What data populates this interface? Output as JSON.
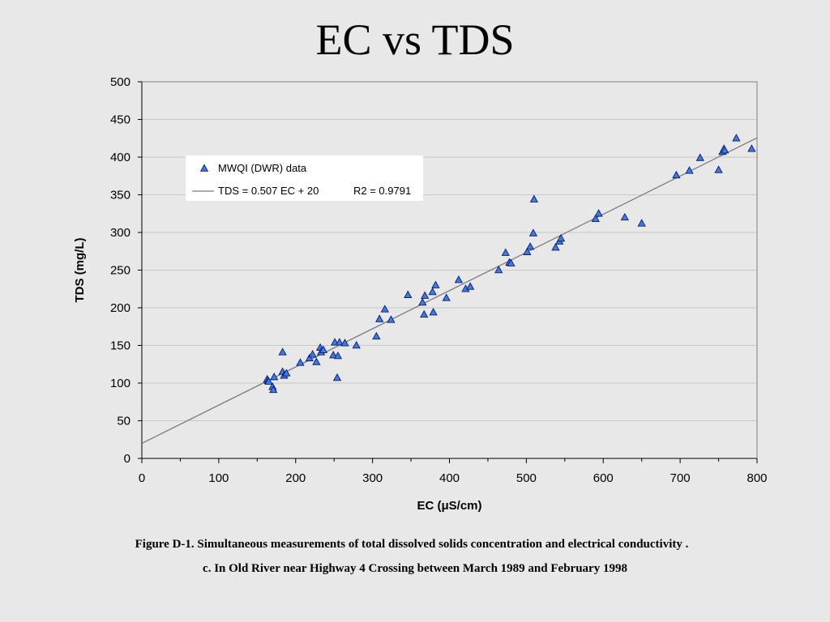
{
  "slide": {
    "title": "EC vs TDS",
    "caption_line1": "Figure D-1.  Simultaneous measurements of total dissolved solids concentration and electrical conductivity .",
    "caption_line2": "c.  In Old River near Highway 4 Crossing between March 1989 and February 1998"
  },
  "chart_data": {
    "type": "scatter",
    "title": "",
    "xlabel": "EC (μS/cm)",
    "ylabel": "TDS (mg/L)",
    "xlim": [
      0,
      800
    ],
    "ylim": [
      0,
      500
    ],
    "xticks": [
      0,
      100,
      200,
      300,
      400,
      500,
      600,
      700,
      800
    ],
    "yticks": [
      0,
      50,
      100,
      150,
      200,
      250,
      300,
      350,
      400,
      450,
      500
    ],
    "grid": "horizontal",
    "legend_position": "upper-left",
    "colors": {
      "marker_fill": "#3d7be8",
      "marker_stroke": "#0a1a6a",
      "trend_line": "#7a7a7a",
      "plot_background": "#e8e8e8",
      "gridline": "#c8c8c8"
    },
    "series": [
      {
        "name": "MWQI (DWR) data",
        "marker": "triangle",
        "points": [
          [
            163,
            105
          ],
          [
            164,
            103
          ],
          [
            165,
            102
          ],
          [
            170,
            95
          ],
          [
            171,
            91
          ],
          [
            172,
            108
          ],
          [
            183,
            141
          ],
          [
            183,
            115
          ],
          [
            185,
            110
          ],
          [
            188,
            113
          ],
          [
            206,
            127
          ],
          [
            218,
            133
          ],
          [
            222,
            138
          ],
          [
            227,
            128
          ],
          [
            232,
            147
          ],
          [
            233,
            141
          ],
          [
            236,
            144
          ],
          [
            249,
            137
          ],
          [
            251,
            154
          ],
          [
            254,
            107
          ],
          [
            255,
            136
          ],
          [
            257,
            154
          ],
          [
            264,
            153
          ],
          [
            279,
            150
          ],
          [
            305,
            162
          ],
          [
            309,
            185
          ],
          [
            316,
            198
          ],
          [
            324,
            184
          ],
          [
            346,
            217
          ],
          [
            365,
            207
          ],
          [
            367,
            191
          ],
          [
            368,
            216
          ],
          [
            378,
            221
          ],
          [
            379,
            194
          ],
          [
            382,
            230
          ],
          [
            396,
            213
          ],
          [
            412,
            237
          ],
          [
            421,
            225
          ],
          [
            427,
            228
          ],
          [
            464,
            250
          ],
          [
            473,
            273
          ],
          [
            478,
            260
          ],
          [
            480,
            259
          ],
          [
            501,
            274
          ],
          [
            505,
            281
          ],
          [
            509,
            299
          ],
          [
            510,
            344
          ],
          [
            538,
            280
          ],
          [
            543,
            288
          ],
          [
            545,
            292
          ],
          [
            590,
            318
          ],
          [
            594,
            325
          ],
          [
            628,
            320
          ],
          [
            650,
            312
          ],
          [
            695,
            376
          ],
          [
            712,
            382
          ],
          [
            726,
            399
          ],
          [
            750,
            383
          ],
          [
            755,
            407
          ],
          [
            757,
            411
          ],
          [
            758,
            409
          ],
          [
            773,
            425
          ],
          [
            793,
            411
          ]
        ]
      },
      {
        "name": "TDS = 0.507 EC + 20",
        "type": "line",
        "slope": 0.507,
        "intercept": 20
      }
    ],
    "legend": {
      "entries": [
        "MWQI (DWR) data",
        "TDS = 0.507 EC + 20"
      ],
      "r2_label": "R2 = 0.9791"
    }
  }
}
